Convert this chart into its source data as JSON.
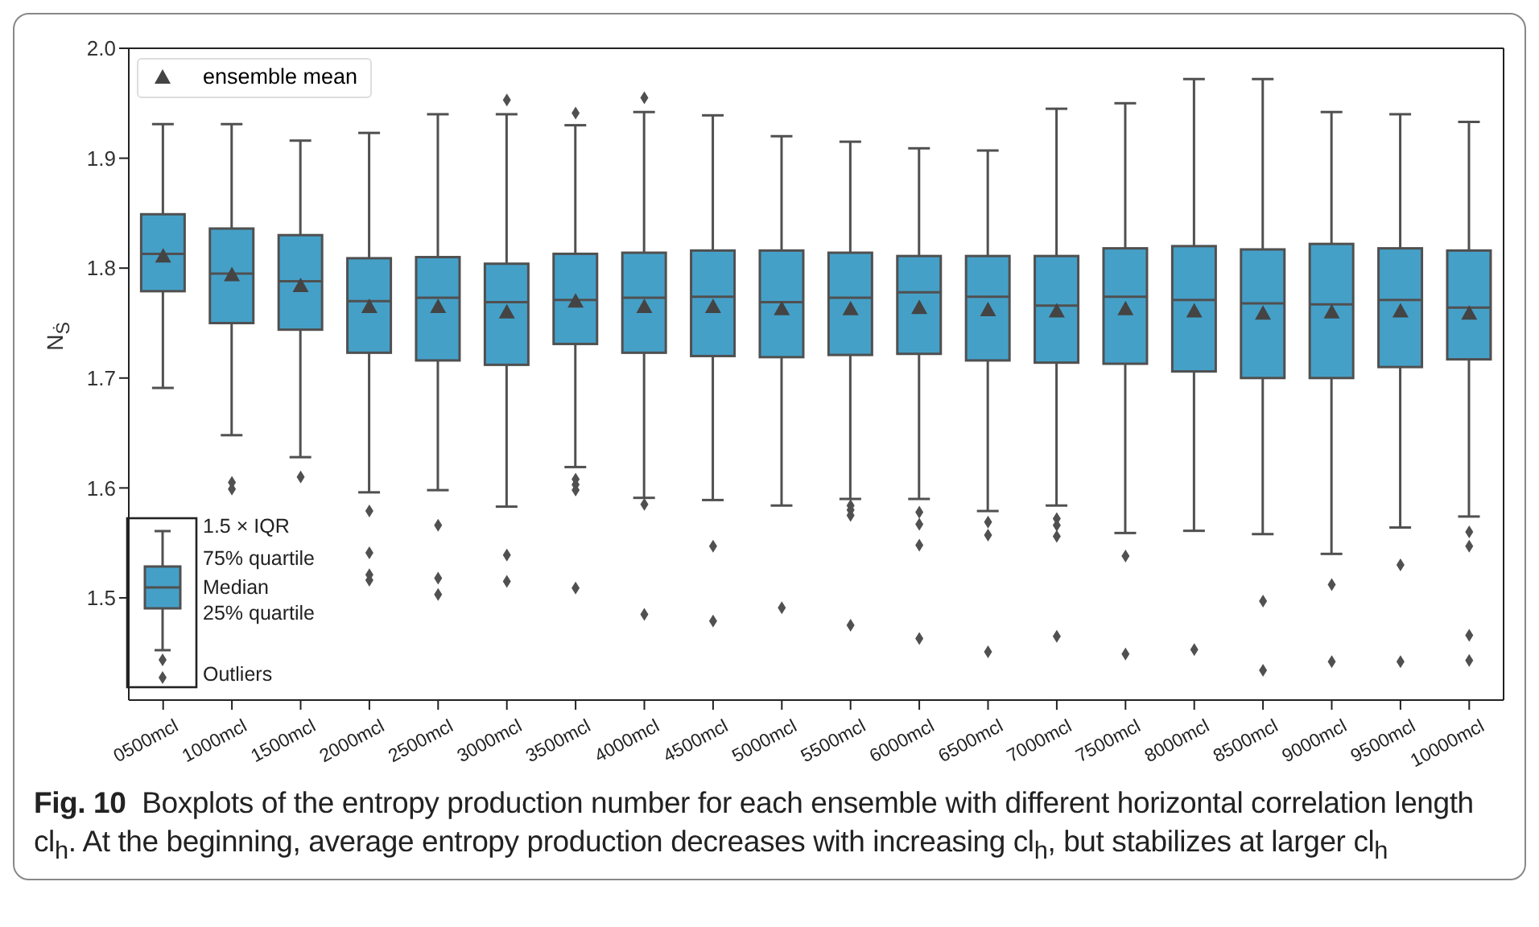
{
  "chart_data": {
    "type": "box",
    "ylabel": "N$_{Ṡ}$",
    "annotations": [
      "Fig. 10",
      "Boxplots of the entropy production number for each ensemble with different horizontal correlation length cl$_{h}$. At the beginning, average entropy production decreases with increasing cl$_{h}$, but stabilizes at larger cl$_{h}$",
      "1.5 × IQR",
      "75% quartile",
      "Median",
      "25% quartile",
      "Outliers"
    ],
    "categories": [
      "0500mcl",
      "1000mcl",
      "1500mcl",
      "2000mcl",
      "2500mcl",
      "3000mcl",
      "3500mcl",
      "4000mcl",
      "4500mcl",
      "5000mcl",
      "5500mcl",
      "6000mcl",
      "6500mcl",
      "7000mcl",
      "7500mcl",
      "8000mcl",
      "8500mcl",
      "9000mcl",
      "9500mcl",
      "10000mcl"
    ],
    "ylim": [
      1.407,
      2.0
    ],
    "yticks": [
      1.5,
      1.6,
      1.7,
      1.8,
      1.9,
      {
        "value": 2,
        "label": "2.0"
      }
    ],
    "legend": "top left",
    "grid": false,
    "series": [
      {
        "color": "#45a0c8",
        "boxes": [
          {
            "low": 1.691,
            "q1": 1.779,
            "median": 1.813,
            "q3": 1.849,
            "high": 1.931
          },
          {
            "low": 1.648,
            "q1": 1.75,
            "median": 1.795,
            "q3": 1.836,
            "high": 1.931,
            "outliers": [
              1.605,
              1.599
            ]
          },
          {
            "low": 1.628,
            "q1": 1.744,
            "median": 1.788,
            "q3": 1.83,
            "high": 1.916,
            "outliers": [
              1.61
            ]
          },
          {
            "low": 1.596,
            "q1": 1.723,
            "median": 1.77,
            "q3": 1.809,
            "high": 1.923,
            "outliers": [
              1.579,
              1.541,
              1.521,
              1.516
            ]
          },
          {
            "low": 1.598,
            "q1": 1.716,
            "median": 1.773,
            "q3": 1.81,
            "high": 1.94,
            "outliers": [
              1.566,
              1.518,
              1.503
            ]
          },
          {
            "low": 1.583,
            "q1": 1.712,
            "median": 1.769,
            "q3": 1.804,
            "high": 1.94,
            "outliers": [
              1.953,
              1.539,
              1.515
            ]
          },
          {
            "low": 1.619,
            "q1": 1.731,
            "median": 1.771,
            "q3": 1.813,
            "high": 1.93,
            "outliers": [
              1.941,
              1.608,
              1.603,
              1.598,
              1.509
            ]
          },
          {
            "low": 1.591,
            "q1": 1.723,
            "median": 1.773,
            "q3": 1.814,
            "high": 1.942,
            "outliers": [
              1.955,
              1.585,
              1.485
            ]
          },
          {
            "low": 1.589,
            "q1": 1.72,
            "median": 1.774,
            "q3": 1.816,
            "high": 1.939,
            "outliers": [
              1.547,
              1.479
            ]
          },
          {
            "low": 1.584,
            "q1": 1.719,
            "median": 1.769,
            "q3": 1.816,
            "high": 1.92,
            "outliers": [
              1.491
            ]
          },
          {
            "low": 1.59,
            "q1": 1.721,
            "median": 1.773,
            "q3": 1.814,
            "high": 1.915,
            "outliers": [
              1.584,
              1.58,
              1.575,
              1.475
            ]
          },
          {
            "low": 1.59,
            "q1": 1.722,
            "median": 1.778,
            "q3": 1.811,
            "high": 1.909,
            "outliers": [
              1.578,
              1.567,
              1.548,
              1.463
            ]
          },
          {
            "low": 1.579,
            "q1": 1.716,
            "median": 1.774,
            "q3": 1.811,
            "high": 1.907,
            "outliers": [
              1.569,
              1.557,
              1.451
            ]
          },
          {
            "low": 1.584,
            "q1": 1.714,
            "median": 1.766,
            "q3": 1.811,
            "high": 1.945,
            "outliers": [
              1.572,
              1.566,
              1.556,
              1.465
            ]
          },
          {
            "low": 1.559,
            "q1": 1.713,
            "median": 1.774,
            "q3": 1.818,
            "high": 1.95,
            "outliers": [
              1.538,
              1.449
            ]
          },
          {
            "low": 1.561,
            "q1": 1.706,
            "median": 1.771,
            "q3": 1.82,
            "high": 1.972,
            "outliers": [
              1.453
            ]
          },
          {
            "low": 1.558,
            "q1": 1.7,
            "median": 1.768,
            "q3": 1.817,
            "high": 1.972,
            "outliers": [
              1.497,
              1.434
            ]
          },
          {
            "low": 1.54,
            "q1": 1.7,
            "median": 1.767,
            "q3": 1.822,
            "high": 1.942,
            "outliers": [
              1.512,
              1.442
            ]
          },
          {
            "low": 1.564,
            "q1": 1.71,
            "median": 1.771,
            "q3": 1.818,
            "high": 1.94,
            "outliers": [
              1.53,
              1.442
            ]
          },
          {
            "low": 1.574,
            "q1": 1.717,
            "median": 1.764,
            "q3": 1.816,
            "high": 1.933,
            "outliers": [
              1.56,
              1.547,
              1.466,
              1.443
            ]
          }
        ]
      },
      {
        "type": "scatter",
        "name": "ensemble mean",
        "marker": "triangle",
        "color": "#444444",
        "x": [
          "0500mcl",
          "1000mcl",
          "1500mcl",
          "2000mcl",
          "2500mcl",
          "3000mcl",
          "3500mcl",
          "4000mcl",
          "4500mcl",
          "5000mcl",
          "5500mcl",
          "6000mcl",
          "6500mcl",
          "7000mcl",
          "7500mcl",
          "8000mcl",
          "8500mcl",
          "9000mcl",
          "9500mcl",
          "10000mcl"
        ],
        "values": [
          1.811,
          1.794,
          1.784,
          1.765,
          1.765,
          1.76,
          1.77,
          1.765,
          1.765,
          1.763,
          1.763,
          1.764,
          1.762,
          1.761,
          1.763,
          1.761,
          1.759,
          1.76,
          1.761,
          1.759
        ]
      }
    ]
  }
}
